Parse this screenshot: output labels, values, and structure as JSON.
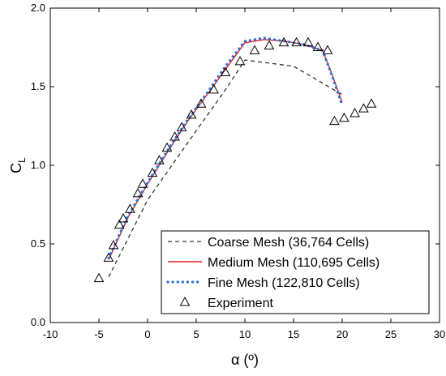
{
  "chart_data": {
    "type": "line",
    "title": "",
    "xlabel": "α (º)",
    "ylabel_main": "C",
    "ylabel_sub": "L",
    "xlim": [
      -10,
      30
    ],
    "ylim": [
      0.0,
      2.0
    ],
    "xticks": [
      -10,
      -5,
      0,
      5,
      10,
      15,
      20,
      25,
      30
    ],
    "yticks": [
      0.0,
      0.5,
      1.0,
      1.5,
      2.0
    ],
    "xtick_labels": [
      "-10",
      "-5",
      "0",
      "5",
      "10",
      "15",
      "20",
      "25",
      "30"
    ],
    "ytick_labels": [
      "0.0",
      "0.5",
      "1.0",
      "1.5",
      "2.0"
    ],
    "grid": false,
    "legend_position": "bottom-right",
    "series": [
      {
        "name": "Coarse Mesh (36,764 Cells)",
        "style": "dashed",
        "color": "#333333",
        "x": [
          -4,
          0,
          5,
          8,
          10,
          15,
          20
        ],
        "y": [
          0.29,
          0.78,
          1.22,
          1.48,
          1.67,
          1.63,
          1.45
        ]
      },
      {
        "name": "Medium Mesh (110,695 Cells)",
        "style": "solid",
        "color": "#e02020",
        "x": [
          -4,
          -2,
          0,
          2,
          4,
          6,
          8,
          10,
          12,
          14,
          16,
          18,
          19,
          20
        ],
        "y": [
          0.4,
          0.67,
          0.88,
          1.08,
          1.27,
          1.44,
          1.61,
          1.78,
          1.8,
          1.79,
          1.77,
          1.73,
          1.57,
          1.4
        ]
      },
      {
        "name": "Fine Mesh (122,810 Cells)",
        "style": "dotted",
        "color": "#2a6fdb",
        "x": [
          -4,
          -2,
          0,
          2,
          4,
          6,
          8,
          10,
          12,
          14,
          16,
          18,
          19,
          20
        ],
        "y": [
          0.41,
          0.68,
          0.89,
          1.09,
          1.28,
          1.45,
          1.63,
          1.79,
          1.81,
          1.79,
          1.77,
          1.73,
          1.56,
          1.38
        ]
      },
      {
        "name": "Experiment",
        "style": "markers",
        "color": "#000000",
        "x": [
          -5,
          -4,
          -3.5,
          -2.9,
          -2.5,
          -1.8,
          -1,
          -0.5,
          0.5,
          1.2,
          2,
          2.8,
          3.5,
          4.5,
          5.5,
          6.8,
          8,
          9.5,
          11,
          12.5,
          14,
          15.3,
          16.5,
          17.5,
          18.5,
          19.2,
          20.2,
          21.3,
          22.2,
          23
        ],
        "y": [
          0.28,
          0.41,
          0.49,
          0.62,
          0.66,
          0.72,
          0.82,
          0.88,
          0.95,
          1.03,
          1.11,
          1.18,
          1.24,
          1.32,
          1.39,
          1.48,
          1.59,
          1.66,
          1.73,
          1.76,
          1.78,
          1.78,
          1.78,
          1.75,
          1.73,
          1.28,
          1.3,
          1.33,
          1.36,
          1.39
        ]
      }
    ]
  }
}
